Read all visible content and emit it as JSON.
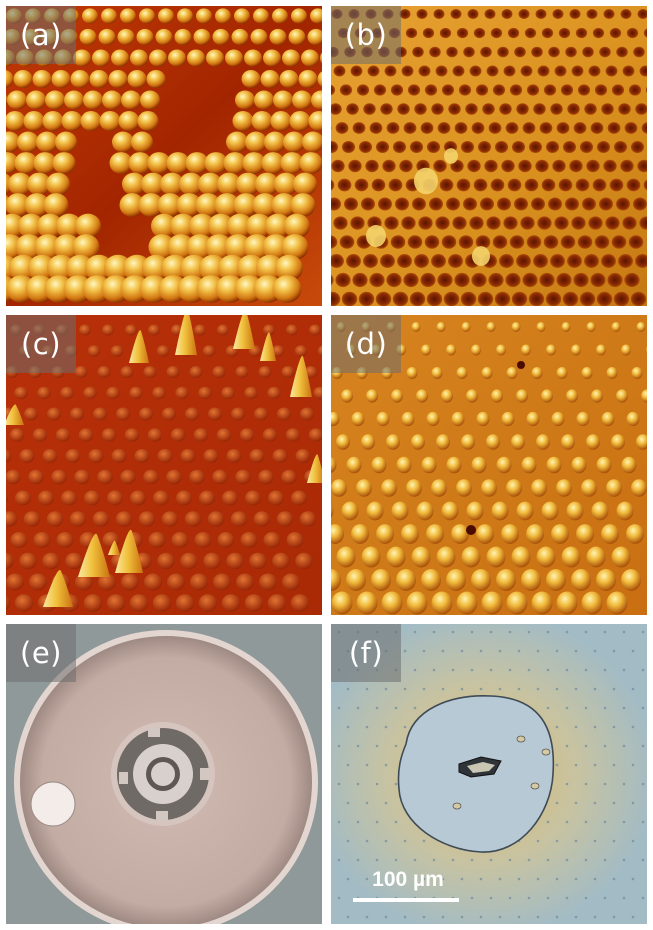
{
  "panels": [
    {
      "label": "(a)"
    },
    {
      "label": "(b)"
    },
    {
      "label": "(c)"
    },
    {
      "label": "(d)"
    },
    {
      "label": "(e)"
    },
    {
      "label": "(f)",
      "scale_bar": "100 µm"
    }
  ],
  "colors": {
    "afm_dark": "#8a1a00",
    "afm_mid": "#d86a10",
    "afm_light": "#ffe680",
    "optical_bg": "#a9b3b3",
    "fibre_face": "#c7b2aa",
    "micrograph_bg": "#9fb9c4"
  }
}
